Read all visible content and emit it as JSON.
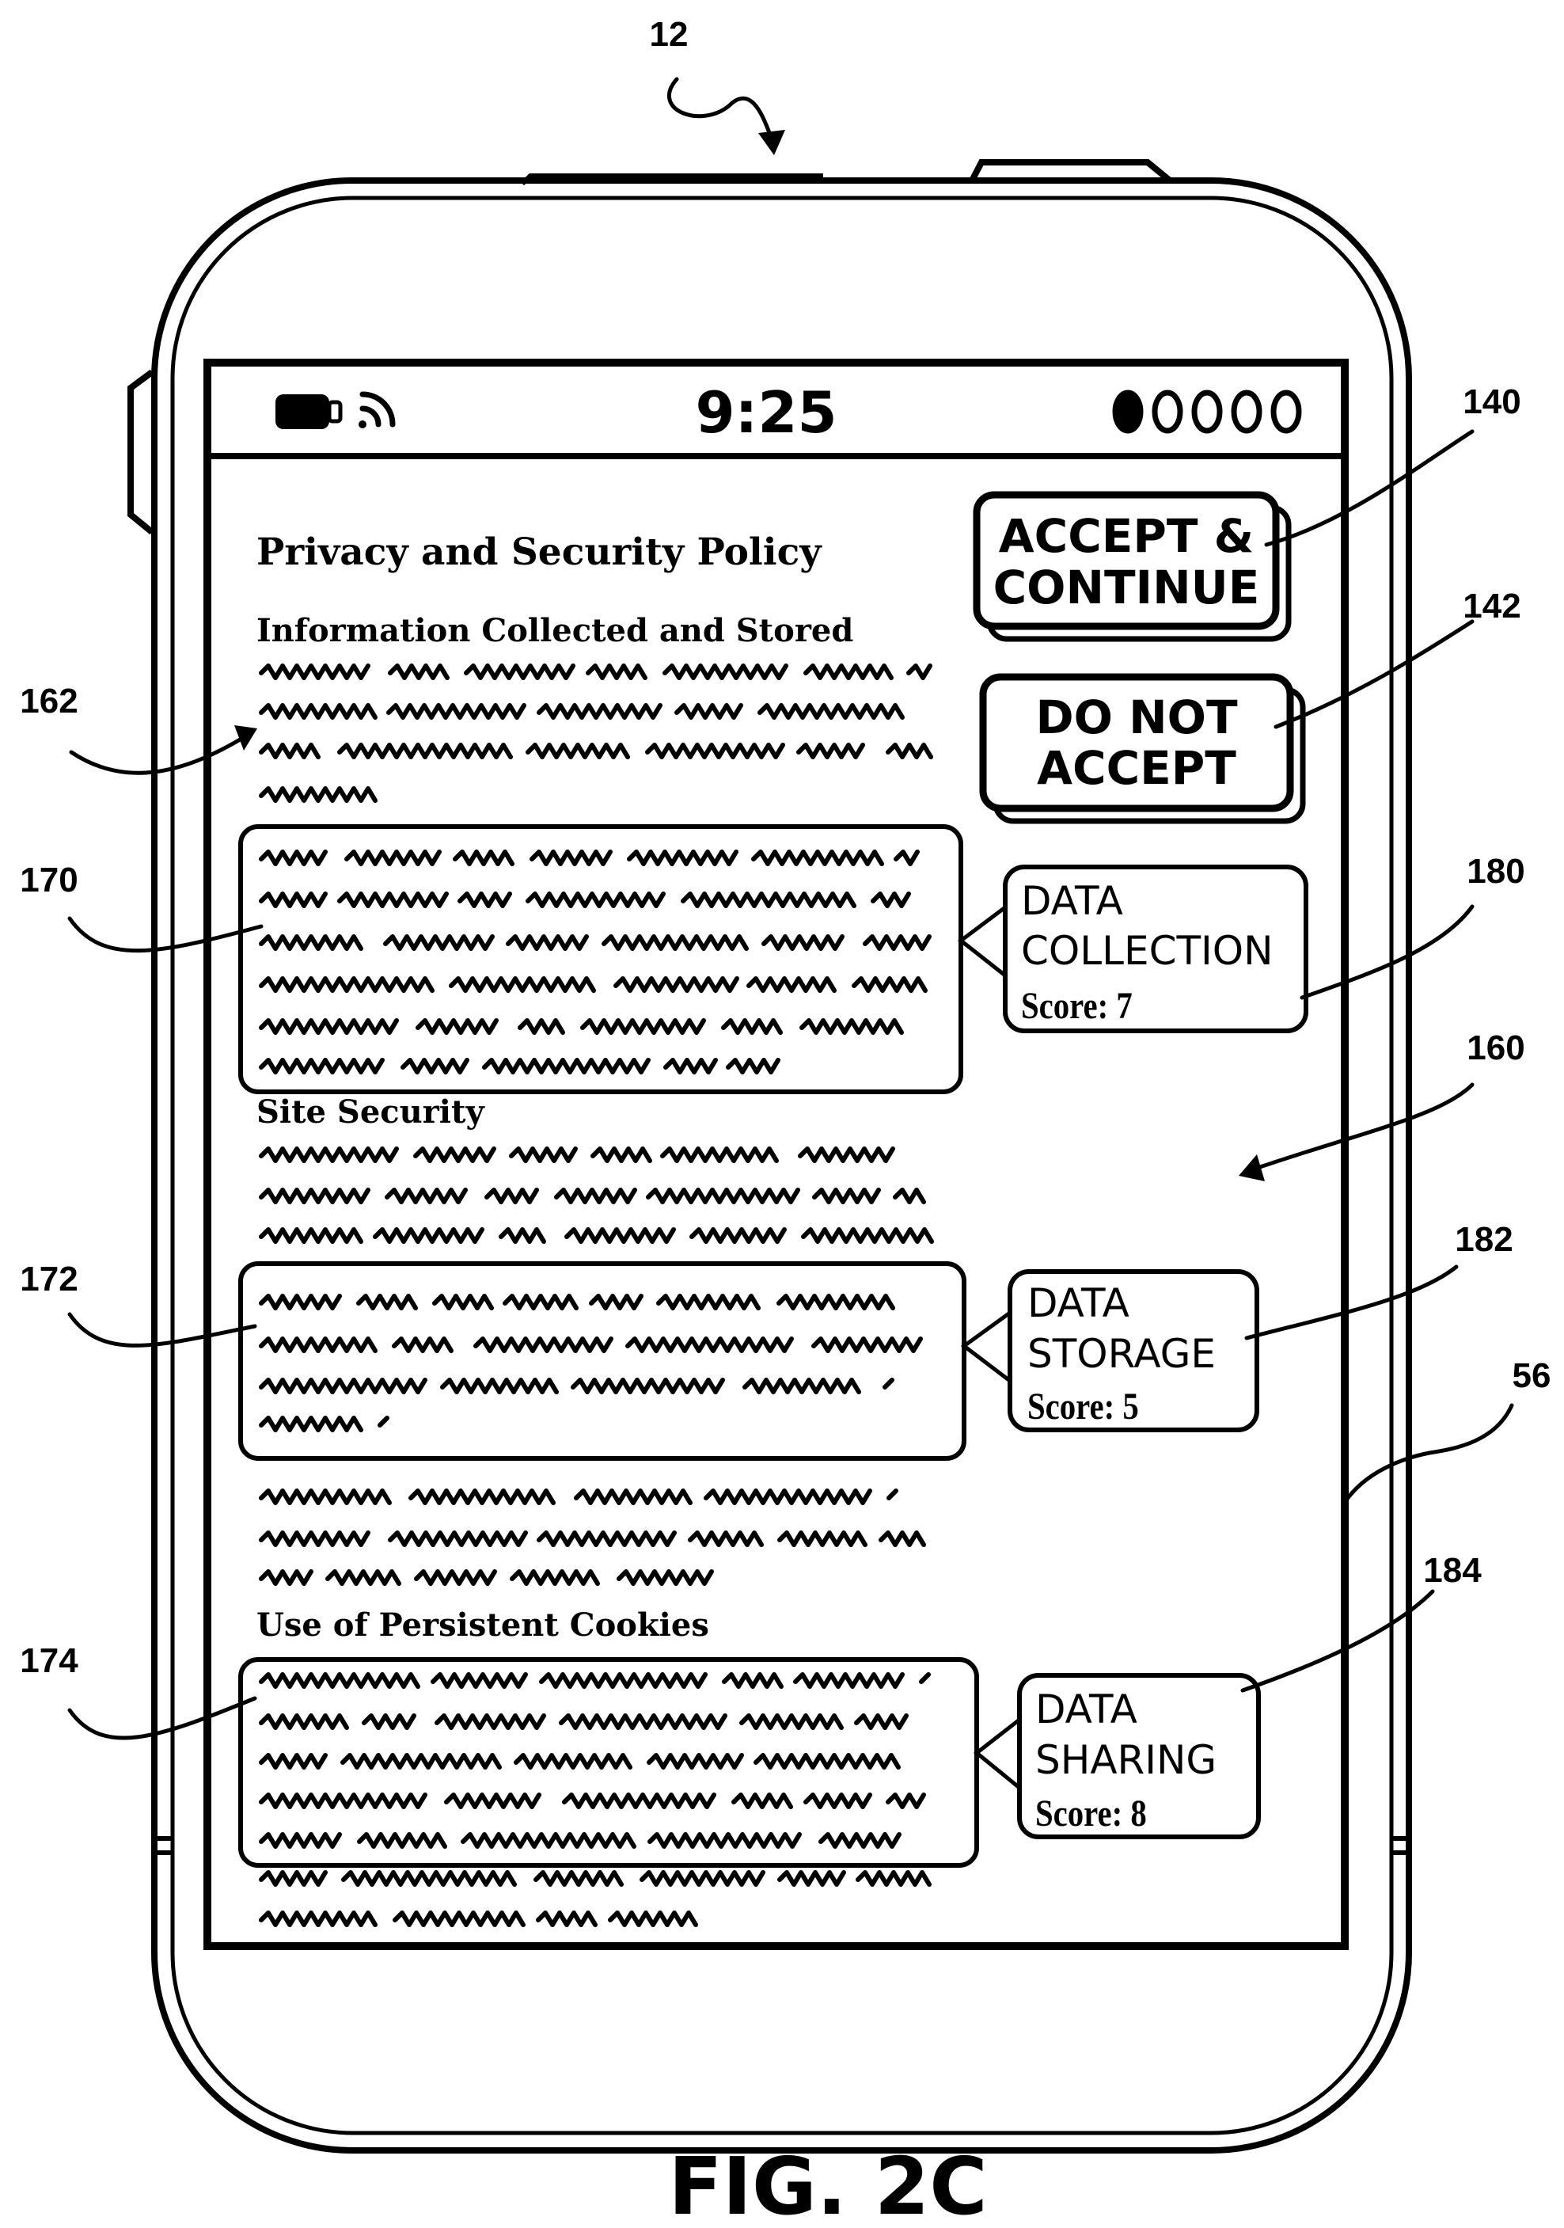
{
  "figure": {
    "label": "FIG. 2C",
    "device_ref": "12",
    "screen_ref": "56",
    "content_ref": "160"
  },
  "status_bar": {
    "time": "9:25",
    "battery": "battery-icon",
    "wifi": "wifi-icon",
    "signal": "signal-dots-icon",
    "signal_filled": 1,
    "signal_total": 5
  },
  "policy": {
    "title": "Privacy and Security Policy",
    "sections": {
      "info": "Information Collected and Stored",
      "security": "Site Security",
      "cookies": "Use of Persistent Cookies"
    },
    "text_ref": "162"
  },
  "buttons": {
    "accept": {
      "line1": "ACCEPT &",
      "line2": "CONTINUE",
      "ref": "140"
    },
    "reject": {
      "line1": "DO NOT",
      "line2": "ACCEPT",
      "ref": "142"
    }
  },
  "highlights": [
    {
      "ref": "170"
    },
    {
      "ref": "172"
    },
    {
      "ref": "174"
    }
  ],
  "scores": [
    {
      "line1": "DATA",
      "line2": "COLLECTION",
      "score": "Score: 7",
      "ref": "180"
    },
    {
      "line1": "DATA",
      "line2": "STORAGE",
      "score": "Score: 5",
      "ref": "182"
    },
    {
      "line1": "DATA",
      "line2": "SHARING",
      "score": "Score: 8",
      "ref": "184"
    }
  ]
}
